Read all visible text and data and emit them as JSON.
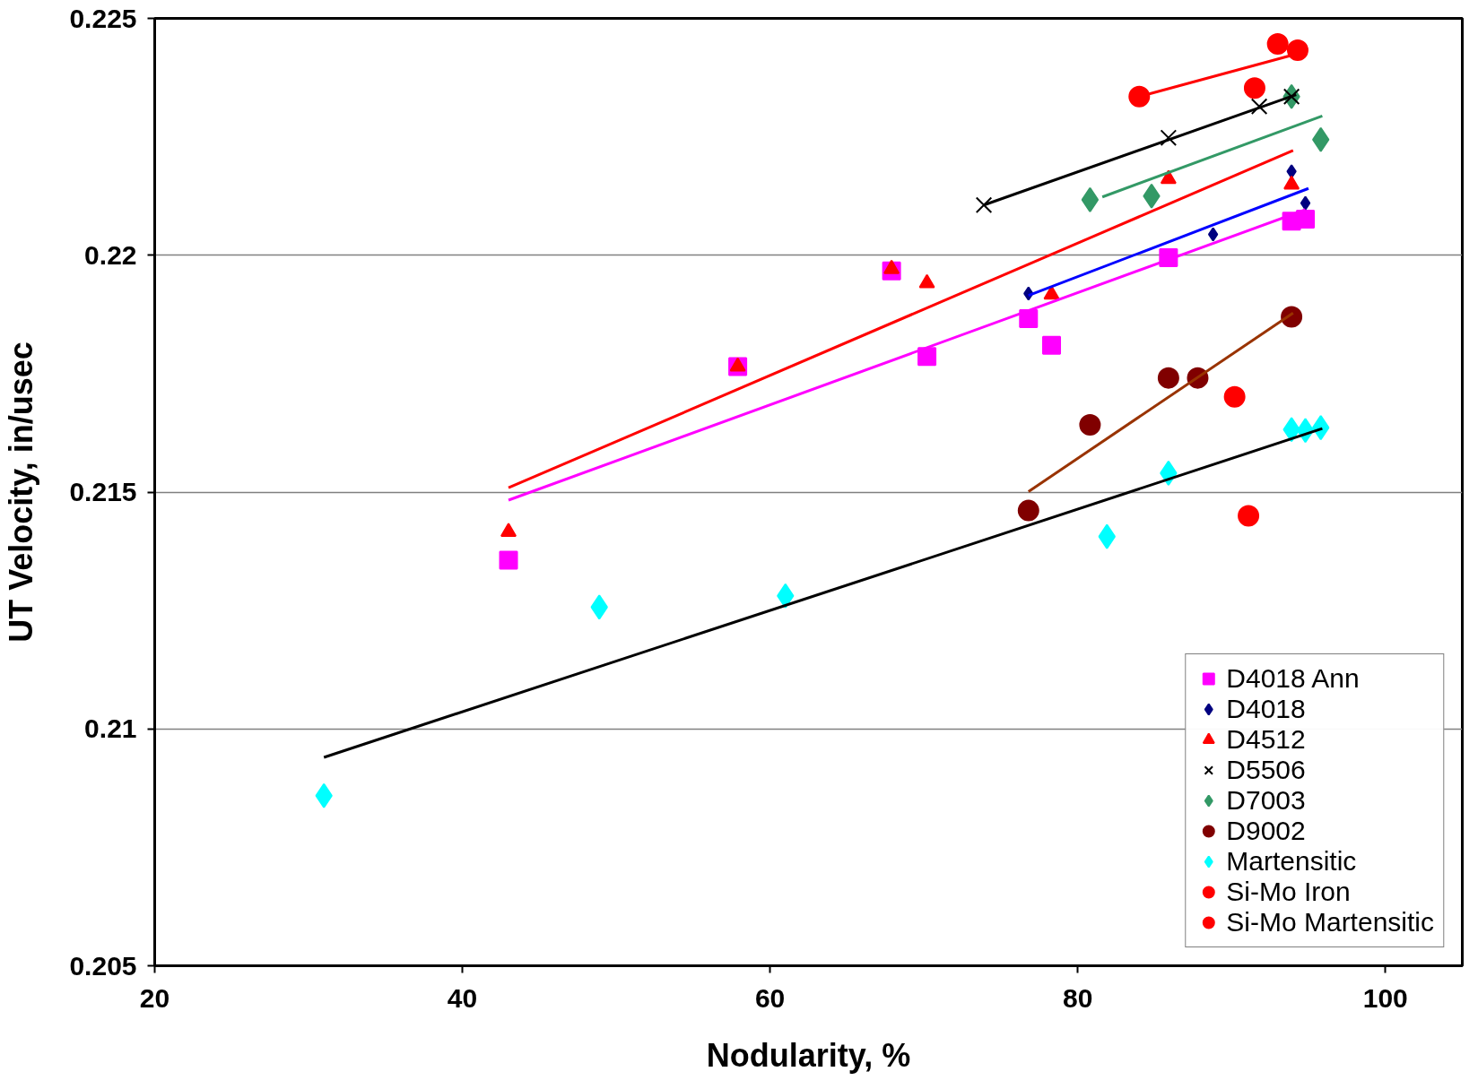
{
  "chart_data": {
    "type": "scatter",
    "xlabel": "Nodularity, %",
    "ylabel": "UT Velocity, in/usec",
    "xlim": [
      20,
      105
    ],
    "ylim": [
      0.205,
      0.225
    ],
    "xticks": [
      20,
      40,
      60,
      80,
      100
    ],
    "yticks": [
      0.205,
      0.21,
      0.215,
      0.22,
      0.225
    ],
    "grid": "y",
    "legend": "bottom right",
    "series": [
      {
        "name": "D4018 Ann",
        "color": "#ff00ff",
        "marker": "square",
        "x": [
          43.0,
          57.9,
          67.9,
          70.2,
          76.8,
          78.3,
          85.9,
          93.9,
          94.8
        ],
        "values": [
          0.21356,
          0.21765,
          0.21967,
          0.21786,
          0.21866,
          0.2181,
          0.21995,
          0.22072,
          0.22076
        ]
      },
      {
        "name": "D4018",
        "color": "#000080",
        "marker": "diamond",
        "x": [
          76.8,
          88.8,
          93.9,
          94.8
        ],
        "values": [
          0.21919,
          0.22044,
          0.22177,
          0.2211
        ]
      },
      {
        "name": "D4512",
        "color": "#ff0000",
        "marker": "triangle",
        "x": [
          43.0,
          57.9,
          67.9,
          70.2,
          78.3,
          85.9,
          93.9
        ],
        "values": [
          0.21416,
          0.21765,
          0.21971,
          0.21941,
          0.21917,
          0.22161,
          0.22149
        ]
      },
      {
        "name": "D5506",
        "color": "#000000",
        "marker": "cross",
        "x": [
          73.9,
          85.9,
          91.8,
          93.9
        ],
        "values": [
          0.22106,
          0.22248,
          0.22314,
          0.22335
        ]
      },
      {
        "name": "D7003",
        "color": "#339966",
        "marker": "diamond",
        "x": [
          80.8,
          84.8,
          93.9,
          95.8
        ],
        "values": [
          0.22117,
          0.22125,
          0.22335,
          0.22244
        ]
      },
      {
        "name": "D9002",
        "color": "#800000",
        "marker": "circle",
        "x": [
          76.8,
          80.8,
          85.9,
          87.8,
          93.9
        ],
        "values": [
          0.21461,
          0.21642,
          0.21741,
          0.21741,
          0.2187
        ]
      },
      {
        "name": "Martensitic",
        "color": "#00ffff",
        "marker": "diamond",
        "x": [
          31.0,
          48.9,
          61.0,
          81.9,
          85.9,
          93.9,
          94.8,
          95.8
        ],
        "values": [
          0.20859,
          0.21257,
          0.21281,
          0.21406,
          0.2154,
          0.21632,
          0.2163,
          0.21636
        ]
      },
      {
        "name": "Si-Mo Iron",
        "color": "#ff0000",
        "marker": "circle",
        "x": [
          84.0,
          93.0,
          94.3,
          91.5
        ],
        "values": [
          0.22335,
          0.22446,
          0.22433,
          0.22353
        ]
      },
      {
        "name": "Si-Mo Martensitic",
        "color": "#ff0000",
        "marker": "circle",
        "x": [
          90.2,
          91.1
        ],
        "values": [
          0.21701,
          0.2145
        ]
      },
      {
        "type": "line",
        "color": "#ff00ff",
        "x": [
          43.0,
          94.8
        ],
        "values": [
          0.21483,
          0.22096
        ]
      },
      {
        "type": "line",
        "color": "#0000ff",
        "x": [
          76.8,
          95.0
        ],
        "values": [
          0.21915,
          0.22141
        ]
      },
      {
        "type": "line",
        "color": "#ff0000",
        "x": [
          43.0,
          94.0
        ],
        "values": [
          0.21509,
          0.22221
        ]
      },
      {
        "type": "line",
        "color": "#000000",
        "x": [
          73.9,
          94.2
        ],
        "values": [
          0.22106,
          0.22339
        ]
      },
      {
        "type": "line",
        "color": "#339966",
        "x": [
          81.6,
          95.9
        ],
        "values": [
          0.22123,
          0.22294
        ]
      },
      {
        "type": "line",
        "color": "#993300",
        "x": [
          76.8,
          94.0
        ],
        "values": [
          0.21501,
          0.21878
        ]
      },
      {
        "type": "line",
        "color": "#000000",
        "x": [
          31.0,
          95.9
        ],
        "values": [
          0.2094,
          0.21634
        ]
      },
      {
        "type": "line",
        "color": "#ff0000",
        "x": [
          84.0,
          94.0
        ],
        "values": [
          0.22335,
          0.22423
        ]
      }
    ]
  }
}
